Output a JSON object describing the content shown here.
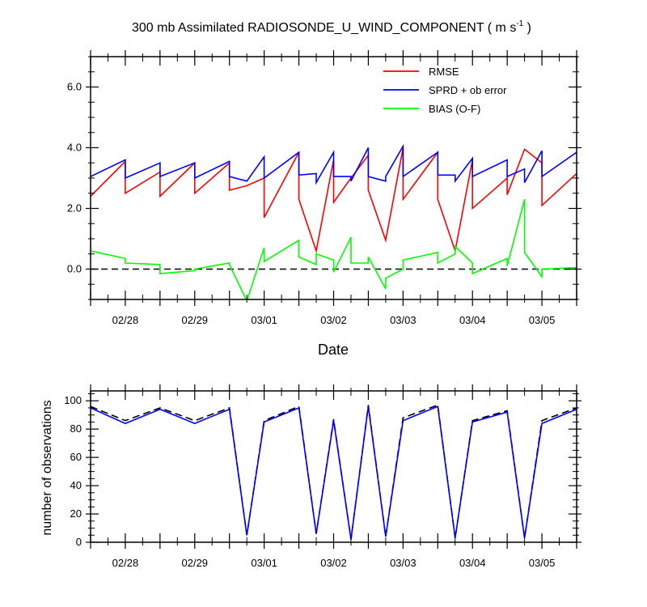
{
  "chart_data": [
    {
      "type": "line",
      "title": "300 mb Assimilated RADIOSONDE_U_WIND_COMPONENT ( m s",
      "title_sup": "-1",
      "title_end": " )",
      "xlabel": "Date",
      "ylabel": "",
      "xlim": [
        0,
        7
      ],
      "ylim": [
        -1.0,
        7.0
      ],
      "yticks": [
        0.0,
        2.0,
        4.0,
        6.0
      ],
      "ytick_labels": [
        "0.0",
        "2.0",
        "4.0",
        "6.0"
      ],
      "xticks": [
        0.5,
        1.5,
        2.5,
        3.5,
        4.5,
        5.5,
        6.5
      ],
      "xtick_labels": [
        "02/28",
        "02/29",
        "03/01",
        "03/02",
        "03/03",
        "03/04",
        "03/05"
      ],
      "zero_line": true,
      "legend_position": "top-right",
      "series": [
        {
          "name": "RMSE",
          "color": "#ff0000",
          "x": [
            0,
            0.5,
            0.5,
            1.0,
            1.0,
            1.5,
            1.5,
            2.0,
            2.0,
            2.25,
            2.5,
            2.5,
            3.0,
            3.0,
            3.25,
            3.5,
            3.5,
            3.75,
            4.0,
            4.0,
            4.25,
            4.5,
            4.5,
            5.0,
            5.0,
            5.25,
            5.5,
            5.5,
            5.75,
            6.0,
            6.0,
            6.25,
            6.5,
            6.5,
            7.0,
            7.0
          ],
          "y": [
            2.4,
            3.55,
            2.5,
            3.2,
            2.4,
            3.5,
            2.5,
            3.5,
            2.6,
            2.75,
            3.0,
            1.7,
            3.85,
            2.3,
            0.6,
            3.6,
            2.2,
            3.0,
            3.75,
            2.6,
            0.95,
            4.0,
            2.3,
            3.85,
            2.3,
            0.6,
            3.6,
            2.0,
            2.5,
            3.0,
            2.45,
            3.95,
            3.5,
            2.1,
            3.15,
            2.0
          ]
        },
        {
          "name": "SPRD + ob error",
          "color": "#0000ff",
          "x": [
            0,
            0.5,
            0.5,
            1.0,
            1.0,
            1.5,
            1.5,
            2.0,
            2.0,
            2.25,
            2.5,
            2.5,
            3.0,
            3.0,
            3.25,
            3.25,
            3.5,
            3.5,
            3.75,
            3.75,
            4.0,
            4.0,
            4.25,
            4.25,
            4.5,
            4.5,
            5.0,
            5.0,
            5.25,
            5.25,
            5.5,
            5.5,
            6.0,
            6.0,
            6.25,
            6.25,
            6.5,
            6.5,
            7.0
          ],
          "y": [
            3.05,
            3.6,
            3.0,
            3.5,
            3.05,
            3.5,
            3.0,
            3.55,
            3.05,
            2.9,
            3.7,
            3.0,
            3.85,
            3.1,
            3.15,
            2.85,
            3.85,
            3.05,
            3.05,
            2.9,
            4.0,
            3.05,
            2.9,
            3.05,
            4.05,
            3.05,
            3.85,
            3.1,
            3.1,
            2.9,
            3.65,
            3.05,
            3.6,
            3.05,
            3.3,
            2.85,
            3.9,
            3.05,
            3.85
          ]
        },
        {
          "name": "BIAS (O-F)",
          "color": "#00ff00",
          "x": [
            0,
            0,
            0.5,
            0.5,
            1.0,
            1.0,
            1.5,
            1.5,
            2.0,
            2.0,
            2.25,
            2.5,
            2.5,
            3.0,
            3.0,
            3.25,
            3.25,
            3.5,
            3.5,
            3.75,
            3.75,
            4.0,
            4.0,
            4.25,
            4.25,
            4.5,
            4.5,
            5.0,
            5.0,
            5.25,
            5.25,
            5.5,
            5.5,
            6.0,
            6.0,
            6.25,
            6.25,
            6.5,
            6.5,
            7.0,
            7.0
          ],
          "y": [
            1.1,
            0.6,
            0.35,
            0.2,
            0.15,
            -0.15,
            -0.05,
            0.0,
            0.2,
            0.15,
            -1.05,
            0.7,
            0.25,
            0.95,
            0.4,
            0.15,
            0.5,
            0.3,
            -0.1,
            1.05,
            0.2,
            0.2,
            0.4,
            -0.65,
            -0.3,
            0.0,
            0.3,
            0.55,
            0.2,
            0.5,
            0.75,
            0.2,
            -0.15,
            0.35,
            0.1,
            2.3,
            0.55,
            -0.25,
            0.0,
            0.05,
            0.0
          ]
        }
      ]
    },
    {
      "type": "line",
      "title": "",
      "xlabel": "",
      "ylabel": "number of observations",
      "xlim": [
        0,
        7
      ],
      "ylim": [
        0,
        107
      ],
      "yticks": [
        0,
        20,
        40,
        60,
        80,
        100
      ],
      "ytick_labels": [
        "0",
        "20",
        "40",
        "60",
        "80",
        "100"
      ],
      "xticks": [
        0.5,
        1.5,
        2.5,
        3.5,
        4.5,
        5.5,
        6.5
      ],
      "xtick_labels": [
        "02/28",
        "02/29",
        "03/01",
        "03/02",
        "03/03",
        "03/04",
        "03/05"
      ],
      "series": [
        {
          "name": "",
          "color": "#000000",
          "style": "dashed",
          "x": [
            0,
            0.5,
            1.0,
            1.5,
            2.0,
            2.25,
            2.5,
            3.0,
            3.25,
            3.5,
            3.75,
            4.0,
            4.25,
            4.5,
            5.0,
            5.25,
            5.5,
            6.0,
            6.25,
            6.5,
            7.0
          ],
          "y": [
            96,
            86,
            95,
            86,
            95,
            5,
            86,
            96,
            6,
            87,
            2,
            97,
            4,
            88,
            97,
            3,
            86,
            93,
            3,
            86,
            95
          ]
        },
        {
          "name": "",
          "color": "#0000ff",
          "style": "solid",
          "x": [
            0,
            0.5,
            1.0,
            1.5,
            2.0,
            2.25,
            2.5,
            3.0,
            3.25,
            3.5,
            3.75,
            4.0,
            4.25,
            4.5,
            5.0,
            5.25,
            5.5,
            6.0,
            6.25,
            6.5,
            7.0
          ],
          "y": [
            95,
            84,
            94,
            84,
            94,
            5,
            85,
            95,
            6,
            86,
            2,
            96,
            4,
            86,
            96,
            3,
            85,
            92,
            3,
            84,
            94
          ]
        }
      ]
    }
  ]
}
